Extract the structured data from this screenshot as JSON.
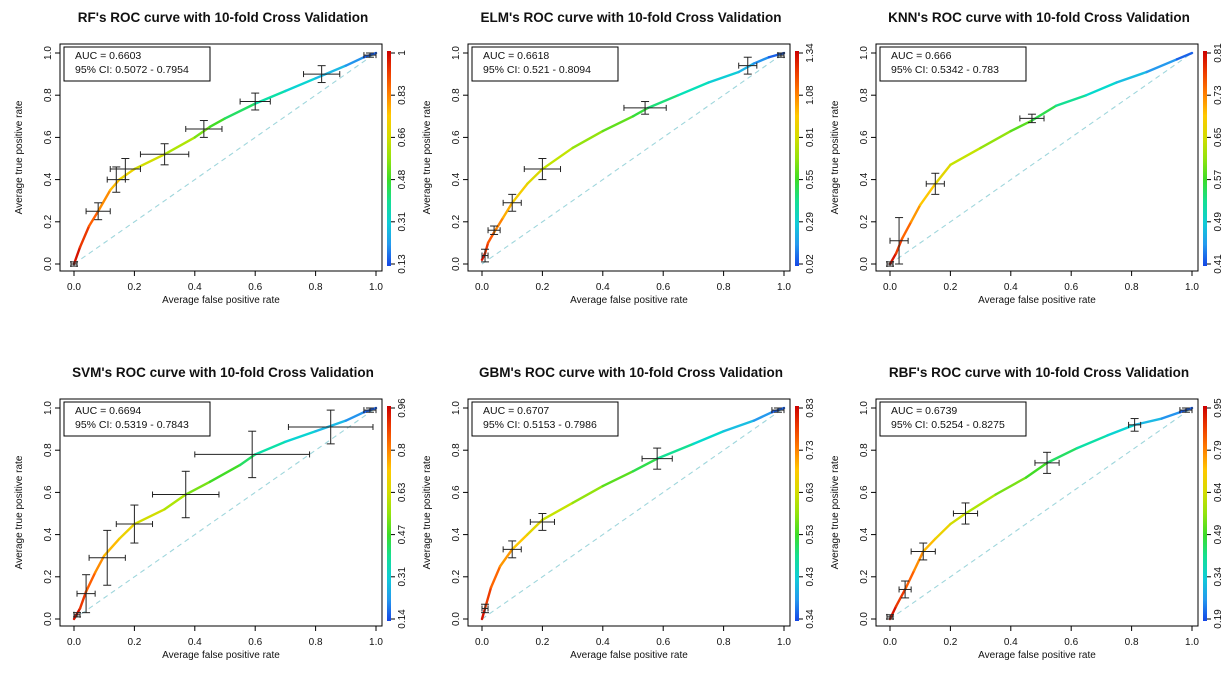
{
  "chart_data": [
    {
      "type": "line",
      "title": "RF's ROC curve with 10-fold Cross Validation",
      "xlabel": "Average false positive rate",
      "ylabel": "Average true positive rate",
      "xlim": [
        0,
        1
      ],
      "ylim": [
        0,
        1
      ],
      "x_ticks": [
        "0.0",
        "0.2",
        "0.4",
        "0.6",
        "0.8",
        "1.0"
      ],
      "y_ticks": [
        "0.0",
        "0.2",
        "0.4",
        "0.6",
        "0.8",
        "1.0"
      ],
      "colorbar_ticks": [
        "0.13",
        "0.31",
        "0.48",
        "0.66",
        "0.83",
        "1"
      ],
      "auc_text": "AUC = 0.6603",
      "ci_text": "95% CI: 0.5072 - 0.7954",
      "curve": [
        [
          0,
          0
        ],
        [
          0.02,
          0.08
        ],
        [
          0.05,
          0.18
        ],
        [
          0.08,
          0.25
        ],
        [
          0.12,
          0.35
        ],
        [
          0.15,
          0.4
        ],
        [
          0.2,
          0.45
        ],
        [
          0.3,
          0.52
        ],
        [
          0.4,
          0.6
        ],
        [
          0.45,
          0.65
        ],
        [
          0.5,
          0.69
        ],
        [
          0.6,
          0.76
        ],
        [
          0.7,
          0.82
        ],
        [
          0.8,
          0.88
        ],
        [
          0.9,
          0.94
        ],
        [
          0.96,
          0.98
        ],
        [
          1,
          1
        ]
      ],
      "error_bars": [
        [
          0,
          0,
          0.01,
          0.01
        ],
        [
          0.08,
          0.25,
          0.04,
          0.04
        ],
        [
          0.14,
          0.4,
          0.03,
          0.06
        ],
        [
          0.17,
          0.45,
          0.05,
          0.05
        ],
        [
          0.3,
          0.52,
          0.08,
          0.05
        ],
        [
          0.43,
          0.64,
          0.06,
          0.04
        ],
        [
          0.6,
          0.77,
          0.05,
          0.04
        ],
        [
          0.82,
          0.9,
          0.06,
          0.04
        ],
        [
          0.98,
          0.99,
          0.02,
          0.01
        ]
      ]
    },
    {
      "type": "line",
      "title": "ELM's ROC curve with 10-fold Cross Validation",
      "xlabel": "Average false positive rate",
      "ylabel": "Average true positive rate",
      "xlim": [
        0,
        1
      ],
      "ylim": [
        0,
        1
      ],
      "x_ticks": [
        "0.0",
        "0.2",
        "0.4",
        "0.6",
        "0.8",
        "1.0"
      ],
      "y_ticks": [
        "0.0",
        "0.2",
        "0.4",
        "0.6",
        "0.8",
        "1.0"
      ],
      "colorbar_ticks": [
        "0.02",
        "0.29",
        "0.55",
        "0.81",
        "1.08",
        "1.34"
      ],
      "auc_text": "AUC = 0.6618",
      "ci_text": "95% CI: 0.521 - 0.8094",
      "curve": [
        [
          0,
          0.02
        ],
        [
          0.01,
          0.05
        ],
        [
          0.02,
          0.1
        ],
        [
          0.04,
          0.15
        ],
        [
          0.07,
          0.22
        ],
        [
          0.1,
          0.29
        ],
        [
          0.15,
          0.38
        ],
        [
          0.2,
          0.45
        ],
        [
          0.3,
          0.55
        ],
        [
          0.4,
          0.63
        ],
        [
          0.5,
          0.7
        ],
        [
          0.55,
          0.74
        ],
        [
          0.65,
          0.8
        ],
        [
          0.75,
          0.86
        ],
        [
          0.85,
          0.91
        ],
        [
          0.9,
          0.95
        ],
        [
          0.95,
          0.98
        ],
        [
          1,
          1
        ]
      ],
      "error_bars": [
        [
          0.01,
          0.04,
          0.01,
          0.03
        ],
        [
          0.04,
          0.16,
          0.02,
          0.02
        ],
        [
          0.1,
          0.29,
          0.03,
          0.04
        ],
        [
          0.2,
          0.45,
          0.06,
          0.05
        ],
        [
          0.54,
          0.74,
          0.07,
          0.03
        ],
        [
          0.88,
          0.94,
          0.03,
          0.04
        ],
        [
          0.99,
          0.99,
          0.01,
          0.01
        ]
      ]
    },
    {
      "type": "line",
      "title": "KNN's ROC curve with 10-fold Cross Validation",
      "xlabel": "Average false positive rate",
      "ylabel": "Average true positive rate",
      "xlim": [
        0,
        1
      ],
      "ylim": [
        0,
        1
      ],
      "x_ticks": [
        "0.0",
        "0.2",
        "0.4",
        "0.6",
        "0.8",
        "1.0"
      ],
      "y_ticks": [
        "0.0",
        "0.2",
        "0.4",
        "0.6",
        "0.8",
        "1.0"
      ],
      "colorbar_ticks": [
        "0.41",
        "0.49",
        "0.57",
        "0.65",
        "0.73",
        "0.81"
      ],
      "auc_text": "AUC = 0.666",
      "ci_text": "95% CI: 0.5342 - 0.783",
      "curve": [
        [
          0,
          0
        ],
        [
          0.02,
          0.05
        ],
        [
          0.04,
          0.12
        ],
        [
          0.07,
          0.2
        ],
        [
          0.1,
          0.28
        ],
        [
          0.15,
          0.38
        ],
        [
          0.2,
          0.47
        ],
        [
          0.3,
          0.55
        ],
        [
          0.4,
          0.63
        ],
        [
          0.47,
          0.68
        ],
        [
          0.55,
          0.75
        ],
        [
          0.65,
          0.8
        ],
        [
          0.75,
          0.86
        ],
        [
          0.85,
          0.91
        ],
        [
          0.95,
          0.97
        ],
        [
          1,
          1
        ]
      ],
      "error_bars": [
        [
          0,
          0,
          0.01,
          0.01
        ],
        [
          0.03,
          0.11,
          0.03,
          0.11
        ],
        [
          0.15,
          0.38,
          0.03,
          0.05
        ],
        [
          0.47,
          0.69,
          0.04,
          0.02
        ]
      ]
    },
    {
      "type": "line",
      "title": "SVM's ROC curve with 10-fold Cross Validation",
      "xlabel": "Average false positive rate",
      "ylabel": "Average true positive rate",
      "xlim": [
        0,
        1
      ],
      "ylim": [
        0,
        1
      ],
      "x_ticks": [
        "0.0",
        "0.2",
        "0.4",
        "0.6",
        "0.8",
        "1.0"
      ],
      "y_ticks": [
        "0.0",
        "0.2",
        "0.4",
        "0.6",
        "0.8",
        "1.0"
      ],
      "colorbar_ticks": [
        "0.14",
        "0.31",
        "0.47",
        "0.63",
        "0.8",
        "0.96"
      ],
      "auc_text": "AUC = 0.6694",
      "ci_text": "95% CI: 0.5319 - 0.7843",
      "curve": [
        [
          0,
          0
        ],
        [
          0.02,
          0.05
        ],
        [
          0.04,
          0.13
        ],
        [
          0.07,
          0.22
        ],
        [
          0.1,
          0.3
        ],
        [
          0.15,
          0.38
        ],
        [
          0.2,
          0.45
        ],
        [
          0.3,
          0.52
        ],
        [
          0.37,
          0.59
        ],
        [
          0.45,
          0.65
        ],
        [
          0.55,
          0.73
        ],
        [
          0.6,
          0.78
        ],
        [
          0.7,
          0.84
        ],
        [
          0.8,
          0.89
        ],
        [
          0.9,
          0.94
        ],
        [
          0.96,
          0.98
        ],
        [
          1,
          1
        ]
      ],
      "error_bars": [
        [
          0.01,
          0.02,
          0.01,
          0.01
        ],
        [
          0.04,
          0.12,
          0.03,
          0.09
        ],
        [
          0.11,
          0.29,
          0.06,
          0.13
        ],
        [
          0.2,
          0.45,
          0.06,
          0.09
        ],
        [
          0.37,
          0.59,
          0.11,
          0.11
        ],
        [
          0.59,
          0.78,
          0.19,
          0.11
        ],
        [
          0.85,
          0.91,
          0.14,
          0.08
        ],
        [
          0.98,
          0.99,
          0.02,
          0.01
        ]
      ]
    },
    {
      "type": "line",
      "title": "GBM's ROC curve with 10-fold Cross Validation",
      "xlabel": "Average false positive rate",
      "ylabel": "Average true positive rate",
      "xlim": [
        0,
        1
      ],
      "ylim": [
        0,
        1
      ],
      "x_ticks": [
        "0.0",
        "0.2",
        "0.4",
        "0.6",
        "0.8",
        "1.0"
      ],
      "y_ticks": [
        "0.0",
        "0.2",
        "0.4",
        "0.6",
        "0.8",
        "1.0"
      ],
      "colorbar_ticks": [
        "0.34",
        "0.43",
        "0.53",
        "0.63",
        "0.73",
        "0.83"
      ],
      "auc_text": "AUC = 0.6707",
      "ci_text": "95% CI: 0.5153 - 0.7986",
      "curve": [
        [
          0,
          0
        ],
        [
          0.01,
          0.05
        ],
        [
          0.03,
          0.15
        ],
        [
          0.06,
          0.25
        ],
        [
          0.1,
          0.33
        ],
        [
          0.15,
          0.4
        ],
        [
          0.2,
          0.47
        ],
        [
          0.3,
          0.55
        ],
        [
          0.4,
          0.63
        ],
        [
          0.5,
          0.7
        ],
        [
          0.58,
          0.76
        ],
        [
          0.7,
          0.83
        ],
        [
          0.8,
          0.89
        ],
        [
          0.9,
          0.94
        ],
        [
          0.96,
          0.98
        ],
        [
          1,
          1
        ]
      ],
      "error_bars": [
        [
          0.01,
          0.05,
          0.01,
          0.02
        ],
        [
          0.1,
          0.33,
          0.03,
          0.04
        ],
        [
          0.2,
          0.46,
          0.04,
          0.04
        ],
        [
          0.58,
          0.76,
          0.05,
          0.05
        ],
        [
          0.98,
          0.99,
          0.02,
          0.01
        ]
      ]
    },
    {
      "type": "line",
      "title": "RBF's ROC curve with 10-fold Cross Validation",
      "xlabel": "Average false positive rate",
      "ylabel": "Average true positive rate",
      "xlim": [
        0,
        1
      ],
      "ylim": [
        0,
        1
      ],
      "x_ticks": [
        "0.0",
        "0.2",
        "0.4",
        "0.6",
        "0.8",
        "1.0"
      ],
      "y_ticks": [
        "0.0",
        "0.2",
        "0.4",
        "0.6",
        "0.8",
        "1.0"
      ],
      "colorbar_ticks": [
        "0.19",
        "0.34",
        "0.49",
        "0.64",
        "0.79",
        "0.95"
      ],
      "auc_text": "AUC = 0.6739",
      "ci_text": "95% CI: 0.5254 - 0.8275",
      "curve": [
        [
          0,
          0
        ],
        [
          0.02,
          0.06
        ],
        [
          0.05,
          0.14
        ],
        [
          0.08,
          0.23
        ],
        [
          0.11,
          0.32
        ],
        [
          0.15,
          0.38
        ],
        [
          0.2,
          0.45
        ],
        [
          0.25,
          0.5
        ],
        [
          0.35,
          0.59
        ],
        [
          0.45,
          0.67
        ],
        [
          0.52,
          0.74
        ],
        [
          0.62,
          0.81
        ],
        [
          0.72,
          0.87
        ],
        [
          0.81,
          0.92
        ],
        [
          0.9,
          0.95
        ],
        [
          0.96,
          0.98
        ],
        [
          1,
          1
        ]
      ],
      "error_bars": [
        [
          0,
          0.01,
          0.01,
          0.01
        ],
        [
          0.05,
          0.14,
          0.02,
          0.04
        ],
        [
          0.11,
          0.32,
          0.04,
          0.04
        ],
        [
          0.25,
          0.5,
          0.04,
          0.05
        ],
        [
          0.52,
          0.74,
          0.04,
          0.05
        ],
        [
          0.81,
          0.92,
          0.02,
          0.03
        ],
        [
          0.98,
          0.99,
          0.02,
          0.01
        ]
      ]
    }
  ]
}
